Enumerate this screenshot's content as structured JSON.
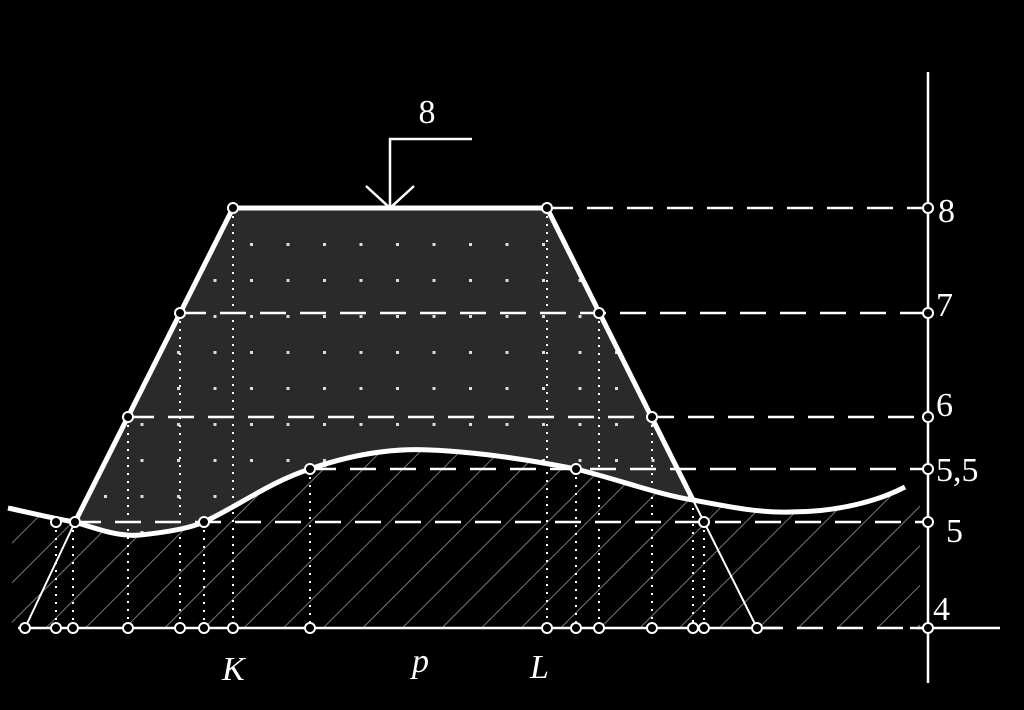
{
  "load_label": "8",
  "levels": [
    "8",
    "7",
    "6",
    "5,5",
    "5",
    "4"
  ],
  "points": [
    "K",
    "p",
    "L"
  ]
}
